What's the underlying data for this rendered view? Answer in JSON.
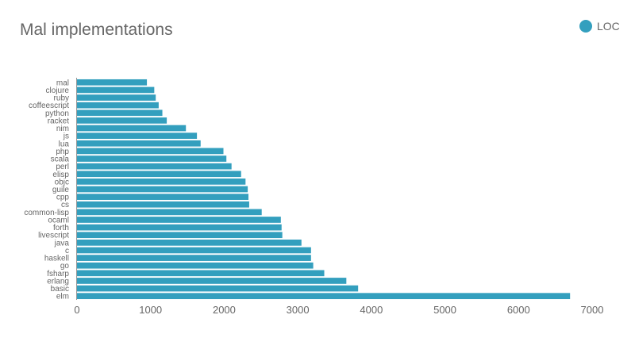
{
  "chart_data": {
    "type": "bar",
    "orientation": "horizontal",
    "title": "Mal implementations",
    "xlabel": "",
    "ylabel": "",
    "xlim": [
      0,
      7000
    ],
    "x_ticks": [
      0,
      1000,
      2000,
      3000,
      4000,
      5000,
      6000,
      7000
    ],
    "grid": false,
    "legend_position": "top-right",
    "categories": [
      "mal",
      "clojure",
      "ruby",
      "coffeescript",
      "python",
      "racket",
      "nim",
      "js",
      "lua",
      "php",
      "scala",
      "perl",
      "elisp",
      "objc",
      "guile",
      "cpp",
      "cs",
      "common-lisp",
      "ocaml",
      "forth",
      "livescript",
      "java",
      "c",
      "haskell",
      "go",
      "fsharp",
      "erlang",
      "basic",
      "elm"
    ],
    "series": [
      {
        "name": "LOC",
        "color": "#339fbe",
        "values": [
          950,
          1050,
          1070,
          1110,
          1160,
          1220,
          1480,
          1630,
          1680,
          1990,
          2030,
          2100,
          2230,
          2290,
          2320,
          2330,
          2340,
          2510,
          2770,
          2780,
          2790,
          3050,
          3180,
          3180,
          3210,
          3360,
          3660,
          3820,
          6700
        ]
      }
    ]
  }
}
